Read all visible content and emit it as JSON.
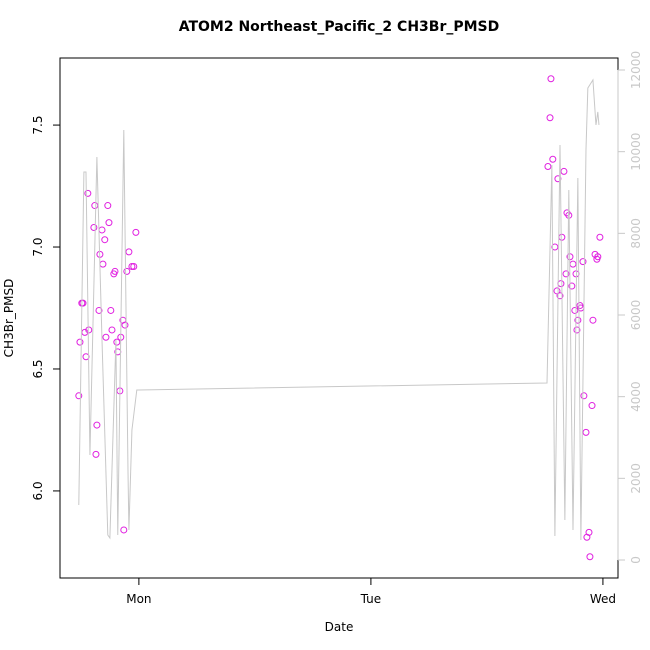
{
  "chart_data": {
    "type": "scatter",
    "title": "ATOM2 Northeast_Pacific_2 CH3Br_PMSD",
    "x_label": "Date",
    "y_label": "CH3Br_PMSD",
    "xlim": [
      0.66,
      3.065
    ],
    "xticks": [
      {
        "value": 1,
        "label": "Mon"
      },
      {
        "value": 2,
        "label": "Tue"
      },
      {
        "value": 3,
        "label": "Wed"
      }
    ],
    "ylim": [
      5.643,
      7.775
    ],
    "yticks": [
      {
        "value": 6,
        "label": "6.0"
      },
      {
        "value": 6.5,
        "label": "6.5"
      },
      {
        "value": 7,
        "label": "7.0"
      },
      {
        "value": 7.5,
        "label": "7.5"
      }
    ],
    "y2lim": [
      -441,
      12294
    ],
    "y2ticks": [
      0,
      2000,
      4000,
      6000,
      8000,
      10000,
      12000
    ],
    "y2_color": "#c8c8c8",
    "series": [
      {
        "type": "scatter",
        "color": "#e020e0",
        "axis": "y",
        "x": [
          0.741,
          0.746,
          0.754,
          0.759,
          0.767,
          0.772,
          0.784,
          0.78,
          0.806,
          0.81,
          0.819,
          0.815,
          0.828,
          0.832,
          0.841,
          0.845,
          0.853,
          0.858,
          0.866,
          0.871,
          0.879,
          0.884,
          0.892,
          0.897,
          0.905,
          0.909,
          0.918,
          0.922,
          0.931,
          0.94,
          0.935,
          0.948,
          0.957,
          0.97,
          0.978,
          0.987,
          2.763,
          2.772,
          2.776,
          2.784,
          2.793,
          2.802,
          2.806,
          2.815,
          2.819,
          2.823,
          2.832,
          2.841,
          2.845,
          2.853,
          2.858,
          2.866,
          2.871,
          2.879,
          2.884,
          2.888,
          2.892,
          2.901,
          2.905,
          2.914,
          2.918,
          2.927,
          2.931,
          2.94,
          2.944,
          2.953,
          2.957,
          2.966,
          2.974,
          2.978,
          2.987
        ],
        "values": [
          6.39,
          6.61,
          6.77,
          6.77,
          6.65,
          6.55,
          6.66,
          7.22,
          7.08,
          7.17,
          6.27,
          6.15,
          6.74,
          6.97,
          7.07,
          6.93,
          7.03,
          6.63,
          7.17,
          7.1,
          6.74,
          6.66,
          6.89,
          6.9,
          6.61,
          6.57,
          6.41,
          6.63,
          6.7,
          6.68,
          5.84,
          6.9,
          6.98,
          6.92,
          6.92,
          7.06,
          7.33,
          7.53,
          7.69,
          7.36,
          7.0,
          6.82,
          7.28,
          6.8,
          6.85,
          7.04,
          7.31,
          6.89,
          7.14,
          7.13,
          6.96,
          6.84,
          6.93,
          6.74,
          6.89,
          6.66,
          6.7,
          6.76,
          6.75,
          6.94,
          6.39,
          6.24,
          5.81,
          5.83,
          5.73,
          6.35,
          6.7,
          6.97,
          6.95,
          6.96,
          7.04
        ]
      },
      {
        "type": "line",
        "color": "#c8c8c8",
        "axis": "y2",
        "x": [
          0.741,
          0.763,
          0.772,
          0.789,
          0.819,
          0.841,
          0.866,
          0.875,
          0.901,
          0.909,
          0.935,
          0.953,
          0.957,
          0.97,
          0.991,
          1.0,
          2.759,
          2.78,
          2.793,
          2.815,
          2.836,
          2.853,
          2.871,
          2.892,
          2.905,
          2.927,
          2.935,
          2.957,
          2.97,
          2.978,
          2.983
        ],
        "values": [
          1347,
          9503,
          9503,
          2572,
          9870,
          5388,
          612,
          539,
          5388,
          612,
          10531,
          2204,
          735,
          3184,
          4164,
          4164,
          4335,
          9674,
          588,
          10164,
          980,
          9062,
          735,
          9356,
          490,
          10041,
          11560,
          11756,
          10654,
          10972,
          10654
        ]
      }
    ]
  }
}
